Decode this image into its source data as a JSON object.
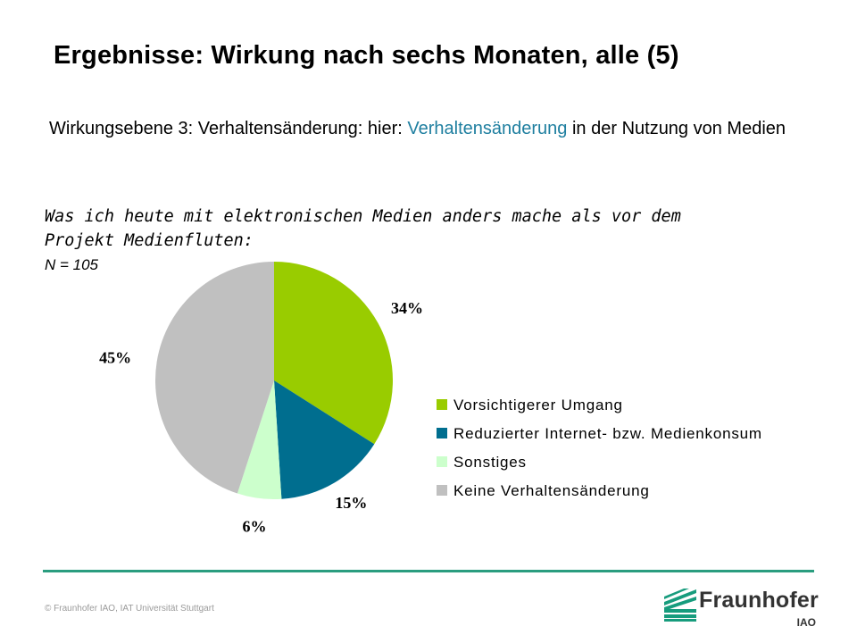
{
  "slide": {
    "title": "Ergebnisse: Wirkung nach sechs Monaten, alle (5)",
    "subtitle_before": "Wirkungsebene 3: Verhaltensänderung: hier: ",
    "subtitle_highlight": "Verhaltensänderung",
    "subtitle_after": " in der Nutzung von Medien",
    "question_line1": "Was ich heute mit elektronischen Medien anders mache als vor dem",
    "question_line2": "Projekt Medienfluten:",
    "n_label": "N = 105",
    "copyright": "© Fraunhofer IAO, IAT Universität Stuttgart",
    "logo_word": "Fraunhofer",
    "logo_sub": "IAO",
    "highlight_color": "#1f7fa0",
    "rule_color": "#2a9d7f"
  },
  "chart_data": {
    "type": "pie",
    "title": "",
    "legend_position": "right",
    "series": [
      {
        "name": "Vorsichtigerer Umgang",
        "value": 34,
        "label": "34%",
        "color": "#99cc00"
      },
      {
        "name": "Reduzierter Internet- bzw. Medienkonsum",
        "value": 15,
        "label": "15%",
        "color": "#006e8f"
      },
      {
        "name": "Sonstiges",
        "value": 6,
        "label": "6%",
        "color": "#ccffcc"
      },
      {
        "name": "Keine Verhaltensänderung",
        "value": 45,
        "label": "45%",
        "color": "#c0c0c0"
      }
    ]
  }
}
